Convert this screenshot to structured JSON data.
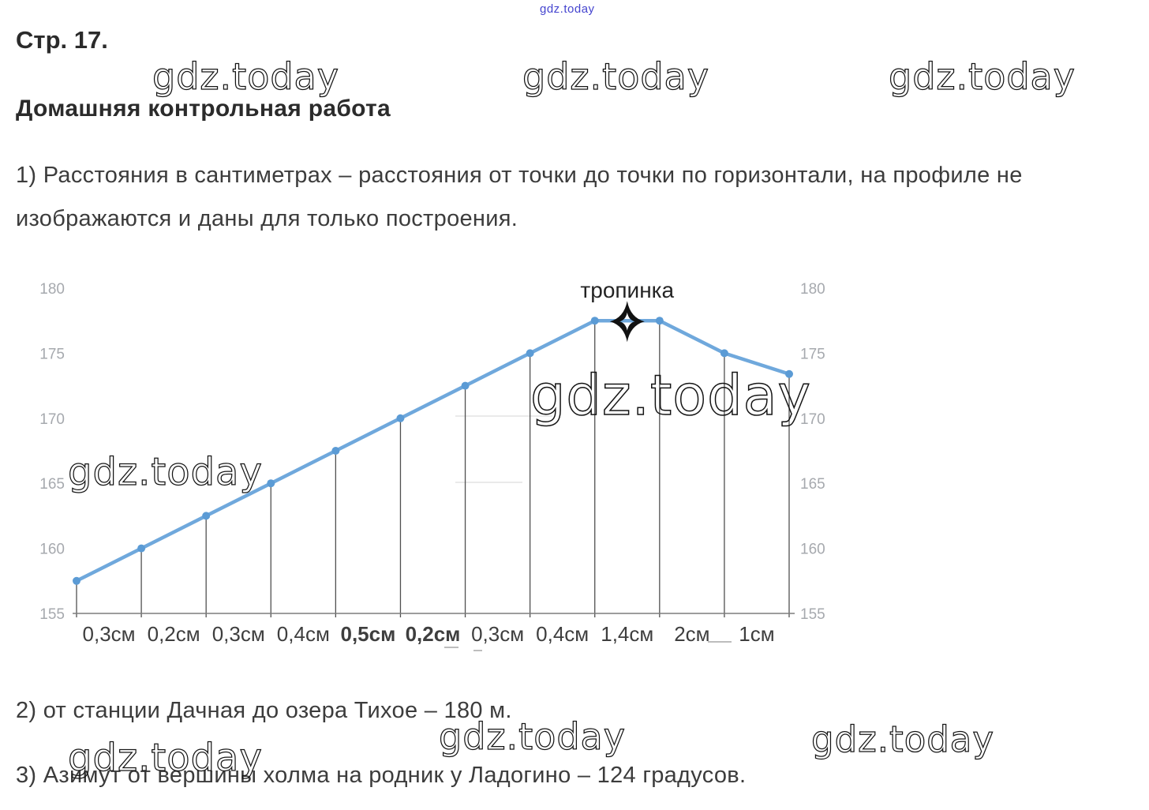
{
  "watermark_text": "gdz.today",
  "header": {
    "top_link": "gdz.today",
    "page_label": "Стр. 17.",
    "title": "Домашняя контрольная работа"
  },
  "answers": {
    "item1_line1": "1) Расстояния в сантиметрах – расстояния от точки до точки по горизонтали, на профиле не",
    "item1_line2": "изображаются и даны для только построения.",
    "item2": "2) от станции Дачная до озера Тихое – 180 м.",
    "item3": "3) Азимут от вершины холма на родник у Ладогино – 124 градусов."
  },
  "chart_data": {
    "type": "line",
    "title": "",
    "xlabel": "",
    "ylabel": "",
    "description": "Elevation profile of a hill; equally spaced points, horizontal distances given only as segment labels in cm",
    "point_label": "тропинка",
    "values": [
      157.5,
      160,
      162.5,
      165,
      167.5,
      170,
      172.5,
      175,
      177.5,
      177.5,
      175,
      173.4
    ],
    "x_segment_labels": [
      "0,3см",
      "0,2см",
      "0,3см",
      "0,4см",
      "0,5см",
      "0,2см",
      "0,3см",
      "0,4см",
      "1,4см",
      "2см",
      "1см"
    ],
    "bold_segment_indices": [
      4,
      5
    ],
    "y_ticks": [
      180,
      175,
      170,
      165,
      160,
      155
    ],
    "ylim": [
      155,
      180
    ],
    "legend": "none",
    "grid": "off",
    "y_tick_sides": "both",
    "colors": {
      "line": "#6fa8dc",
      "marker": "#5b9bd5",
      "drop_lines": "#505050",
      "baseline": "#7d7d7d",
      "tick_labels": "#a6a9ae",
      "segment_labels": "#3e3e3e",
      "trail_label": "#242424",
      "star": "#111111"
    }
  }
}
